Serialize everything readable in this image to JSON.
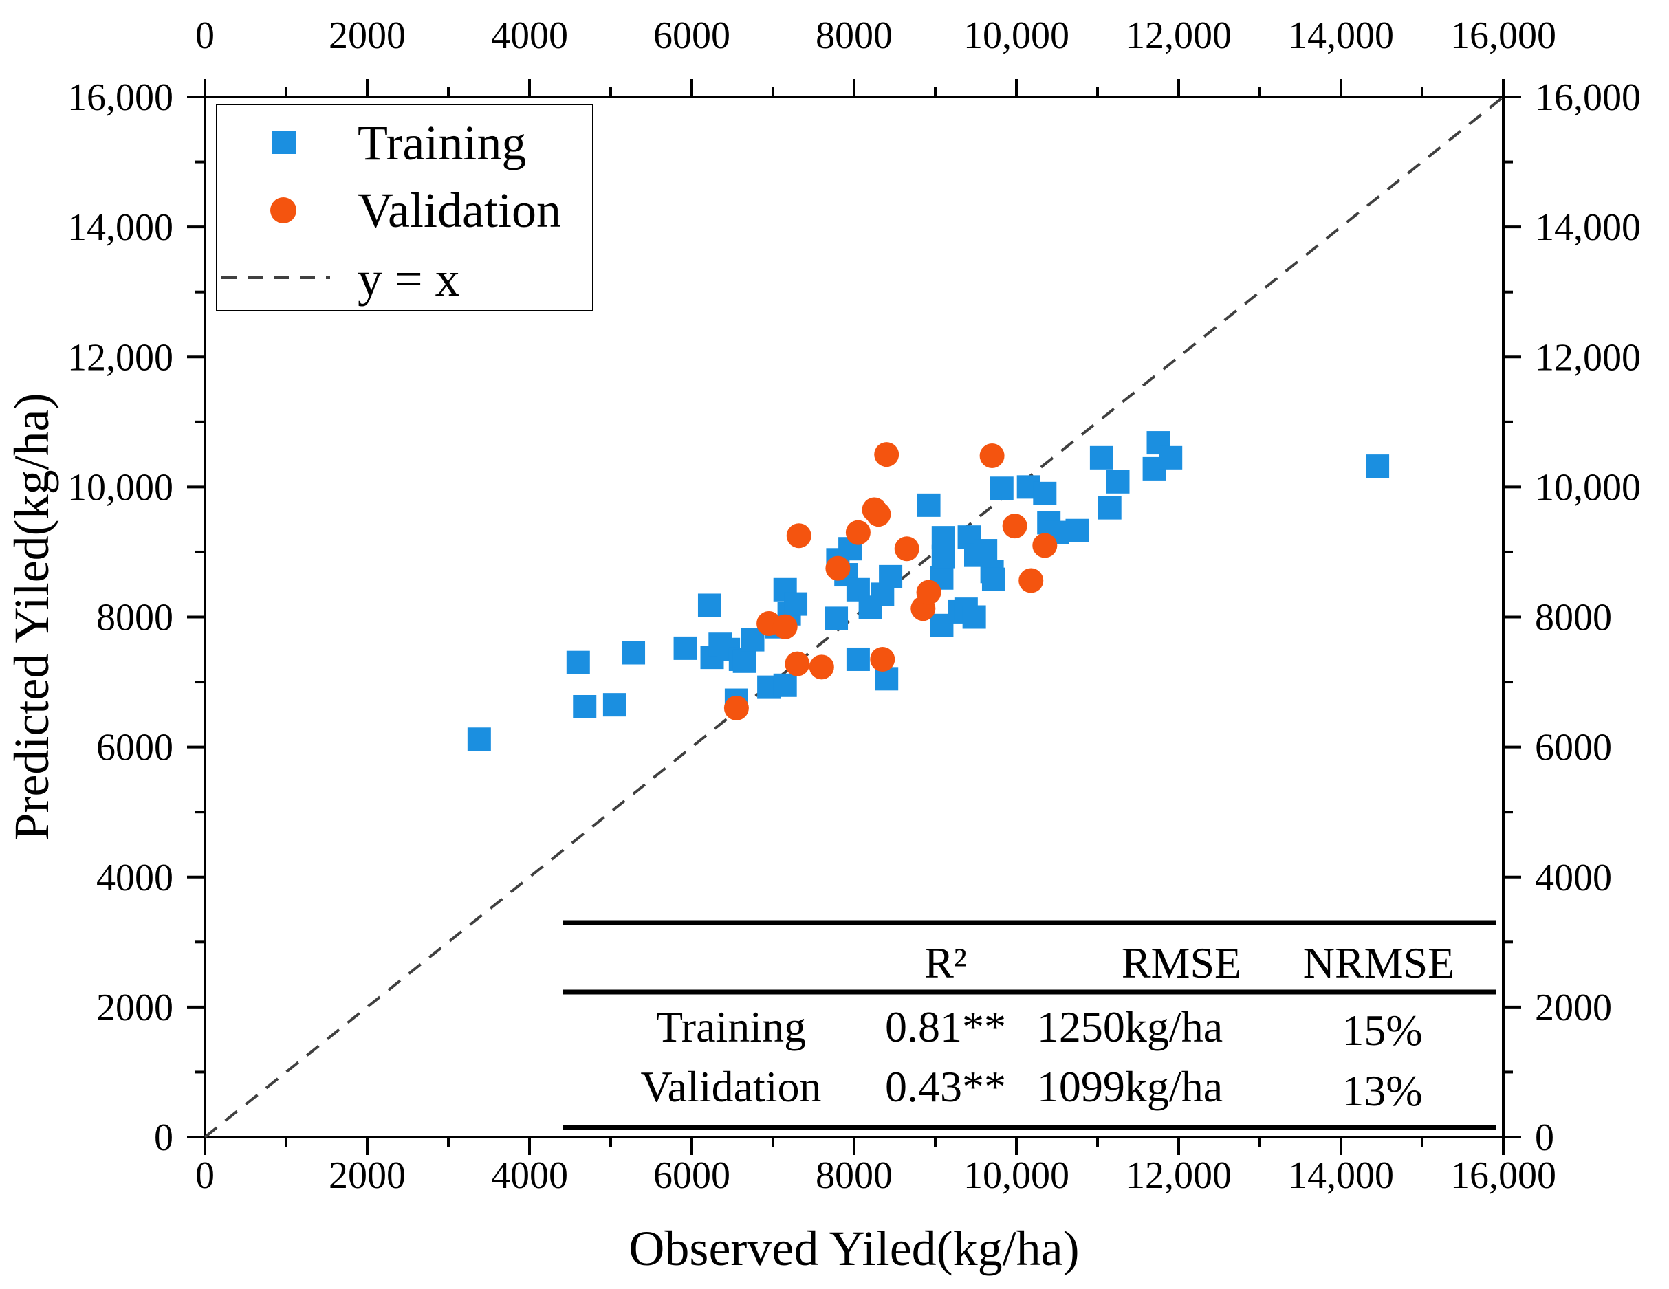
{
  "chart_data": {
    "type": "scatter",
    "xlabel": "Observed Yiled(kg/ha)",
    "ylabel": "Predicted Yiled(kg/ha)",
    "xlim": [
      0,
      16000
    ],
    "ylim": [
      0,
      16000
    ],
    "x_ticks": [
      0,
      2000,
      4000,
      6000,
      8000,
      10000,
      12000,
      14000,
      16000
    ],
    "x_tick_labels": [
      "0",
      "2000",
      "4000",
      "6000",
      "8000",
      "10,000",
      "12,000",
      "14,000",
      "16,000"
    ],
    "y_ticks": [
      0,
      2000,
      4000,
      6000,
      8000,
      10000,
      12000,
      14000,
      16000
    ],
    "y_tick_labels": [
      "0",
      "2000",
      "4000",
      "6000",
      "8000",
      "10,000",
      "12,000",
      "14,000",
      "16,000"
    ],
    "grid": false,
    "legend_position": "top-left",
    "legend": [
      "Training",
      "Validation",
      "y = x"
    ],
    "series": [
      {
        "name": "Training",
        "marker": "square",
        "color": "#1b8fe0",
        "points": [
          [
            3380,
            6120
          ],
          [
            4600,
            7300
          ],
          [
            4680,
            6620
          ],
          [
            5050,
            6650
          ],
          [
            5280,
            7450
          ],
          [
            5920,
            7520
          ],
          [
            6220,
            8180
          ],
          [
            6250,
            7380
          ],
          [
            6350,
            7580
          ],
          [
            6450,
            7500
          ],
          [
            6600,
            7350
          ],
          [
            6650,
            7320
          ],
          [
            6750,
            7650
          ],
          [
            6550,
            6720
          ],
          [
            6950,
            6920
          ],
          [
            7050,
            7850
          ],
          [
            7150,
            6950
          ],
          [
            7150,
            8420
          ],
          [
            7200,
            8050
          ],
          [
            7280,
            8200
          ],
          [
            7780,
            7980
          ],
          [
            7800,
            8880
          ],
          [
            7950,
            9050
          ],
          [
            7900,
            8650
          ],
          [
            8050,
            8420
          ],
          [
            8050,
            7350
          ],
          [
            8200,
            8150
          ],
          [
            8350,
            8350
          ],
          [
            8400,
            7050
          ],
          [
            8450,
            8620
          ],
          [
            8920,
            9720
          ],
          [
            9080,
            7870
          ],
          [
            9080,
            8600
          ],
          [
            9100,
            9220
          ],
          [
            9100,
            8930
          ],
          [
            9300,
            8080
          ],
          [
            9380,
            8120
          ],
          [
            9420,
            9230
          ],
          [
            9480,
            8000
          ],
          [
            9500,
            8950
          ],
          [
            9620,
            9020
          ],
          [
            9700,
            8700
          ],
          [
            9720,
            8580
          ],
          [
            9820,
            9980
          ],
          [
            10150,
            10000
          ],
          [
            10350,
            9900
          ],
          [
            10400,
            9450
          ],
          [
            10500,
            9300
          ],
          [
            10750,
            9330
          ],
          [
            11050,
            10450
          ],
          [
            11150,
            9680
          ],
          [
            11250,
            10080
          ],
          [
            11700,
            10280
          ],
          [
            11750,
            10680
          ],
          [
            11900,
            10450
          ],
          [
            14450,
            10320
          ]
        ]
      },
      {
        "name": "Validation",
        "marker": "circle",
        "color": "#f4540f",
        "points": [
          [
            6550,
            6600
          ],
          [
            6950,
            7900
          ],
          [
            7150,
            7850
          ],
          [
            7300,
            7280
          ],
          [
            7320,
            9250
          ],
          [
            7600,
            7230
          ],
          [
            7800,
            8750
          ],
          [
            8050,
            9300
          ],
          [
            8250,
            9650
          ],
          [
            8300,
            9580
          ],
          [
            8350,
            7350
          ],
          [
            8400,
            10500
          ],
          [
            8650,
            9050
          ],
          [
            8850,
            8130
          ],
          [
            8920,
            8380
          ],
          [
            9700,
            10480
          ],
          [
            9980,
            9400
          ],
          [
            10180,
            8560
          ],
          [
            10350,
            9100
          ]
        ]
      },
      {
        "name": "y = x",
        "style": "dashed",
        "color": "#404040",
        "x": [
          0,
          16000
        ],
        "y": [
          0,
          16000
        ]
      }
    ],
    "stats_table": {
      "columns": [
        "",
        "R²",
        "RMSE",
        "NRMSE"
      ],
      "rows": [
        [
          "Training",
          "0.81**",
          "1250kg/ha",
          "15%"
        ],
        [
          "Validation",
          "0.43**",
          "1099kg/ha",
          "13%"
        ]
      ]
    }
  }
}
